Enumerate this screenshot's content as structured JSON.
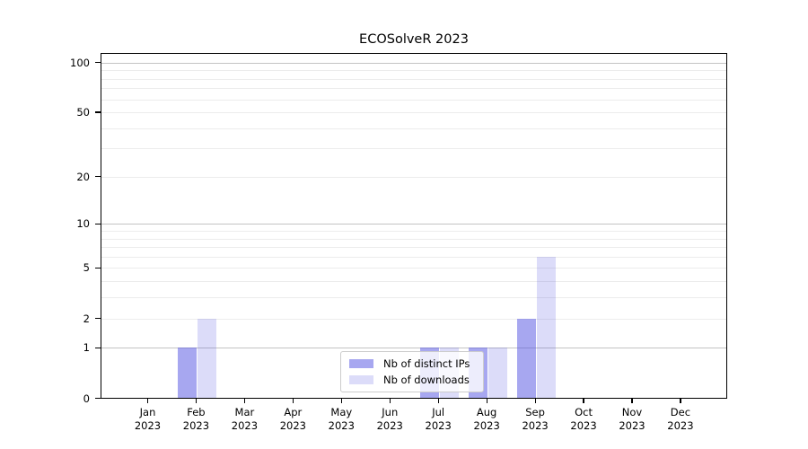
{
  "title": "ECOSolveR 2023",
  "chart_data": {
    "type": "bar",
    "title": "ECOSolveR 2023",
    "categories": [
      "Jan 2023",
      "Feb 2023",
      "Mar 2023",
      "Apr 2023",
      "May 2023",
      "Jun 2023",
      "Jul 2023",
      "Aug 2023",
      "Sep 2023",
      "Oct 2023",
      "Nov 2023",
      "Dec 2023"
    ],
    "series": [
      {
        "name": "Nb of distinct IPs",
        "color": "rgba(80,80,225,0.5)",
        "values": [
          0,
          1,
          0,
          0,
          0,
          0,
          1,
          1,
          2,
          0,
          0,
          0
        ]
      },
      {
        "name": "Nb of downloads",
        "color": "rgba(80,80,225,0.2)",
        "values": [
          0,
          2,
          0,
          0,
          0,
          0,
          1,
          1,
          6,
          0,
          0,
          0
        ]
      }
    ],
    "xlabel": "",
    "ylabel": "",
    "yscale": "log1p",
    "ylim": [
      0,
      113
    ],
    "yticks": {
      "values": [
        0,
        1,
        2,
        5,
        10,
        20,
        50,
        100
      ],
      "labels": [
        "0",
        "1",
        "2",
        "5",
        "10",
        "20",
        "50",
        "100"
      ]
    },
    "grid": {
      "on": true,
      "major_values": [
        1,
        10,
        100
      ],
      "minor_values": [
        2,
        3,
        4,
        5,
        6,
        7,
        8,
        9,
        20,
        30,
        40,
        50,
        60,
        70,
        80,
        90
      ],
      "major_color": "#c3c3c3",
      "minor_color": "#ececec"
    },
    "legend": {
      "position": "lower center",
      "items": [
        "Nb of distinct IPs",
        "Nb of downloads"
      ]
    }
  },
  "colors": {
    "bar_distinct_ips": "rgba(80,80,225,0.5)",
    "bar_downloads": "rgba(80,80,225,0.2)",
    "axis": "#000000",
    "background": "#ffffff"
  }
}
